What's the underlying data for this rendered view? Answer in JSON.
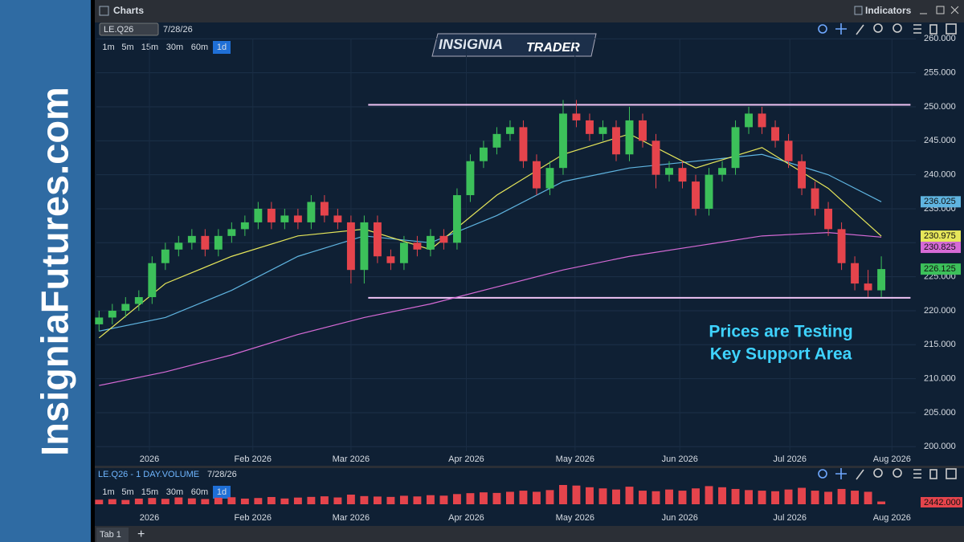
{
  "header": {
    "title": "Charts",
    "indicators": "Indicators"
  },
  "banner": "InsigniaFutures.com",
  "logo": {
    "left": "INSIGNIA",
    "right": "TRADER"
  },
  "symbol": "LE.Q26",
  "date": "7/28/26",
  "timeframes": [
    "1m",
    "5m",
    "15m",
    "30m",
    "60m",
    "1d"
  ],
  "tab": "Tab 1",
  "chart_data": {
    "type": "candlestick",
    "open": [
      218,
      219,
      220,
      221,
      222,
      227,
      229,
      230,
      231,
      229,
      231,
      232,
      233,
      235,
      233,
      234,
      233,
      236,
      234,
      233,
      226,
      233,
      228,
      227,
      230,
      229,
      231,
      230,
      237,
      242,
      244,
      246,
      247,
      242,
      238,
      241,
      249,
      248,
      246,
      247,
      243,
      248,
      245,
      240,
      241,
      239,
      235,
      240,
      241,
      247,
      249,
      247,
      245,
      242,
      238,
      235,
      232,
      227,
      224,
      223
    ],
    "high": [
      220,
      221,
      222,
      223,
      228,
      230,
      231,
      232,
      232,
      232,
      233,
      234,
      236,
      236,
      235,
      235,
      237,
      237,
      235,
      234,
      234,
      234,
      229,
      231,
      231,
      232,
      232,
      238,
      243,
      245,
      247,
      248,
      248,
      243,
      242,
      251,
      251,
      249,
      248,
      248,
      250,
      249,
      246,
      242,
      242,
      240,
      241,
      242,
      248,
      250,
      250,
      248,
      246,
      243,
      239,
      236,
      233,
      228,
      226,
      228
    ],
    "low": [
      217,
      218,
      219,
      220,
      221,
      226,
      228,
      229,
      228,
      228,
      230,
      231,
      232,
      232,
      232,
      232,
      232,
      233,
      232,
      224,
      224,
      227,
      226,
      226,
      228,
      228,
      229,
      229,
      236,
      241,
      243,
      245,
      241,
      237,
      237,
      240,
      247,
      245,
      245,
      242,
      242,
      244,
      238,
      239,
      238,
      234,
      234,
      239,
      240,
      246,
      246,
      244,
      241,
      237,
      234,
      231,
      226,
      223,
      222,
      222
    ],
    "close": [
      219,
      220,
      221,
      222,
      227,
      229,
      230,
      231,
      229,
      231,
      232,
      233,
      235,
      233,
      234,
      233,
      236,
      234,
      233,
      226,
      233,
      228,
      227,
      230,
      229,
      231,
      230,
      237,
      242,
      244,
      246,
      247,
      242,
      238,
      241,
      249,
      248,
      246,
      247,
      243,
      248,
      245,
      240,
      241,
      239,
      235,
      240,
      241,
      247,
      249,
      247,
      245,
      242,
      238,
      235,
      232,
      227,
      224,
      223,
      226.125
    ],
    "last_label": "226.125",
    "up_color": "#3cc05a",
    "down_color": "#e5444c",
    "xlim": [
      -0.2,
      61.6
    ],
    "xticks": [
      {
        "value": 3.8,
        "label": "2026"
      },
      {
        "value": 11.6,
        "label": "Feb 2026"
      },
      {
        "value": 19,
        "label": "Mar 2026"
      },
      {
        "value": 27.7,
        "label": "Apr 2026"
      },
      {
        "value": 35.9,
        "label": "May 2026"
      },
      {
        "value": 43.8,
        "label": "Jun 2026"
      },
      {
        "value": 52.1,
        "label": "Jul 2026"
      },
      {
        "value": 59.8,
        "label": "Aug 2026"
      }
    ],
    "ylim": [
      197.2,
      262.4
    ],
    "yticks": [
      {
        "value": 200,
        "label": "200.000"
      },
      {
        "value": 205,
        "label": "205.000"
      },
      {
        "value": 210,
        "label": "210.000"
      },
      {
        "value": 215,
        "label": "215.000"
      },
      {
        "value": 220,
        "label": "220.000"
      },
      {
        "value": 225,
        "label": "225.000"
      },
      {
        "value": 230,
        "label": "230.000"
      },
      {
        "value": 235,
        "label": "235.000"
      },
      {
        "value": 240,
        "label": "240.000"
      },
      {
        "value": 245,
        "label": "245.000"
      },
      {
        "value": 250,
        "label": "250.000"
      },
      {
        "value": 255,
        "label": "255.000"
      },
      {
        "value": 260,
        "label": "260.000"
      }
    ],
    "grid": true,
    "series": [
      {
        "color": "#5fb4e0",
        "x": [
          0,
          5,
          10,
          15,
          20,
          25,
          30,
          35,
          40,
          45,
          50,
          55,
          59
        ],
        "values": [
          217,
          219,
          223,
          228,
          231,
          230,
          234,
          239,
          241,
          242,
          243,
          240,
          236.025
        ],
        "last_label": "236.025"
      },
      {
        "color": "#e6e65a",
        "x": [
          0,
          5,
          10,
          15,
          20,
          25,
          30,
          35,
          40,
          45,
          50,
          55,
          59
        ],
        "values": [
          216,
          224,
          228,
          231,
          232,
          229,
          237,
          243,
          246,
          241,
          244,
          238,
          230.975
        ],
        "last_label": "230.975"
      },
      {
        "color": "#d66ad6",
        "x": [
          0,
          5,
          10,
          15,
          20,
          25,
          30,
          35,
          40,
          45,
          50,
          55,
          59
        ],
        "values": [
          209,
          211,
          213.5,
          216.5,
          219,
          221,
          223.5,
          226,
          228,
          229.5,
          231,
          231.5,
          230.825
        ],
        "last_label": "230.825"
      }
    ],
    "hlines": [
      {
        "value": 250.3,
        "x": [
          20.3,
          61.2
        ],
        "color": "#efc3f5"
      },
      {
        "value": 221.9,
        "x": [
          20.3,
          61.2
        ],
        "color": "#efc3f5"
      }
    ],
    "annotation": [
      "Prices are Testing",
      "Key Support Area"
    ],
    "volume": {
      "title": "LE.Q26 - 1 DAY.VOLUME",
      "date": "7/28/26",
      "color": "#e5444c",
      "last_label": "2442.000",
      "values": [
        4000,
        4500,
        3800,
        5000,
        5500,
        4800,
        6000,
        5200,
        4600,
        5800,
        6200,
        5000,
        5500,
        6400,
        5100,
        5900,
        6500,
        7000,
        6000,
        8500,
        7200,
        6800,
        6500,
        7500,
        6900,
        8000,
        7600,
        9000,
        9800,
        10500,
        10000,
        11000,
        12000,
        11000,
        12500,
        17000,
        16500,
        15000,
        14000,
        13000,
        15500,
        12000,
        11500,
        13000,
        12000,
        14000,
        16000,
        15000,
        13500,
        12500,
        12000,
        11500,
        13000,
        14500,
        12000,
        11000,
        13500,
        12000,
        11000,
        2442
      ]
    }
  }
}
